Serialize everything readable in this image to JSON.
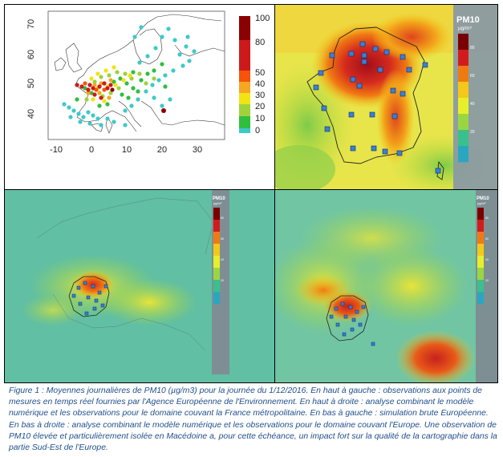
{
  "figure": {
    "caption": "Figure 1 : Moyennes journalières de PM10 (µg/m3) pour la journée du 1/12/2016. En haut à gauche : observations aux points de mesures en temps réel fournies par l'Agence Européenne de l'Environnement. En haut à droite : analyse combinant le modèle numérique et les observations pour le domaine couvant la France métropolitaine. En bas à gauche : simulation brute Européenne. En bas à droite : analyse combinant le modèle numérique et les observations pour le domaine couvant l'Europe. Une observation de PM10 élevée et particulièrement isolée en Macédoine a, pour cette échéance, un impact fort sur la qualité de la cartographie dans la partie Sud-Est de l'Europe."
  },
  "obs_panel": {
    "x_ticks": [
      "-10",
      "0",
      "10",
      "20",
      "30"
    ],
    "y_ticks": [
      "70",
      "60",
      "50",
      "40"
    ],
    "scale_labels": [
      "100",
      "80",
      "50",
      "40",
      "30",
      "20",
      "10",
      "0"
    ],
    "scale_colors": [
      "#8b0000",
      "#cc1a1a",
      "#f5540a",
      "#f5a623",
      "#f2e313",
      "#9fd23b",
      "#2fbf3f",
      "#3ec9c9"
    ]
  },
  "colorbar": {
    "title": "PM10",
    "unit": "µg/m³",
    "ticks": [
      "80",
      "60",
      "40",
      "20"
    ],
    "colors": [
      "#7a0000",
      "#d21c1c",
      "#f07a12",
      "#f3c818",
      "#e7ef2b",
      "#9ad642",
      "#3ac08c",
      "#2ba6c0"
    ]
  }
}
